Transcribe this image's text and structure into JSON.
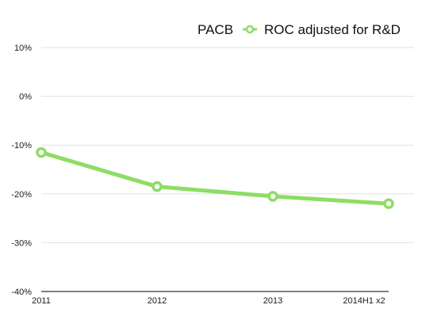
{
  "chart_data": {
    "type": "line",
    "title": "PACB",
    "xlabel": "",
    "ylabel": "",
    "categories": [
      "2011",
      "2012",
      "2013",
      "2014H1 x2"
    ],
    "y_tick_labels": [
      "10%",
      "0%",
      "-10%",
      "-20%",
      "-30%",
      "-40%"
    ],
    "y_ticks": [
      10,
      0,
      -10,
      -20,
      -30,
      -40
    ],
    "ylim": [
      -40,
      10
    ],
    "grid": true,
    "legend_position": "top-right",
    "series": [
      {
        "name": "ROC adjusted for R&D",
        "color": "#8EDD65",
        "values": [
          -11.5,
          -18.5,
          -20.5,
          -22.0
        ]
      }
    ]
  }
}
